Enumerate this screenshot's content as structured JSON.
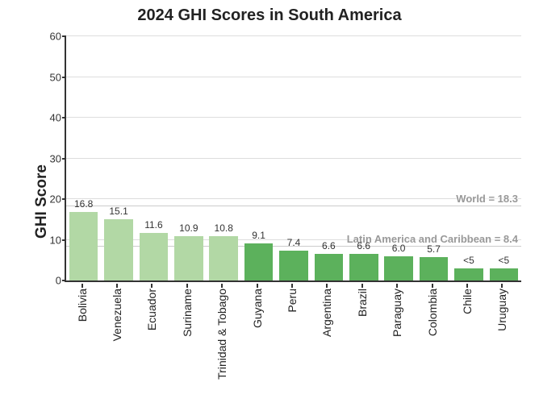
{
  "chart": {
    "type": "bar",
    "title": "2024 GHI Scores in South America",
    "title_fontsize": 20,
    "ylabel": "GHI Score",
    "ylabel_fontsize": 19,
    "ylim": [
      0,
      60
    ],
    "ytick_step": 10,
    "yticks": [
      0,
      10,
      20,
      30,
      40,
      50,
      60
    ],
    "background_color": "#ffffff",
    "grid_color": "#dddddd",
    "axis_color": "#333333",
    "bar_width_ratio": 0.82,
    "xtick_fontsize": 14,
    "value_label_fontsize": 12,
    "colors": {
      "light": "#b2d8a5",
      "dark": "#5cb15c"
    },
    "reference_lines": [
      {
        "label": "World = 18.3",
        "value": 18.3,
        "color": "#cccccc",
        "label_color": "#999999",
        "label_fontsize": 13
      },
      {
        "label": "Latin America and Caribbean = 8.4",
        "value": 8.4,
        "color": "#cccccc",
        "label_color": "#999999",
        "label_fontsize": 13
      }
    ],
    "data": [
      {
        "country": "Bolivia",
        "value": 16.8,
        "label": "16.8",
        "color": "light"
      },
      {
        "country": "Venezuela",
        "value": 15.1,
        "label": "15.1",
        "color": "light"
      },
      {
        "country": "Ecuador",
        "value": 11.6,
        "label": "11.6",
        "color": "light"
      },
      {
        "country": "Suriname",
        "value": 10.9,
        "label": "10.9",
        "color": "light"
      },
      {
        "country": "Trinidad & Tobago",
        "value": 10.8,
        "label": "10.8",
        "color": "light"
      },
      {
        "country": "Guyana",
        "value": 9.1,
        "label": "9.1",
        "color": "dark"
      },
      {
        "country": "Peru",
        "value": 7.4,
        "label": "7.4",
        "color": "dark"
      },
      {
        "country": "Argentina",
        "value": 6.6,
        "label": "6.6",
        "color": "dark"
      },
      {
        "country": "Brazil",
        "value": 6.6,
        "label": "6.6",
        "color": "dark"
      },
      {
        "country": "Paraguay",
        "value": 6.0,
        "label": "6.0",
        "color": "dark"
      },
      {
        "country": "Colombia",
        "value": 5.7,
        "label": "5.7",
        "color": "dark"
      },
      {
        "country": "Chile",
        "value": 3.0,
        "label": "<5",
        "color": "dark"
      },
      {
        "country": "Uruguay",
        "value": 3.0,
        "label": "<5",
        "color": "dark"
      }
    ]
  }
}
